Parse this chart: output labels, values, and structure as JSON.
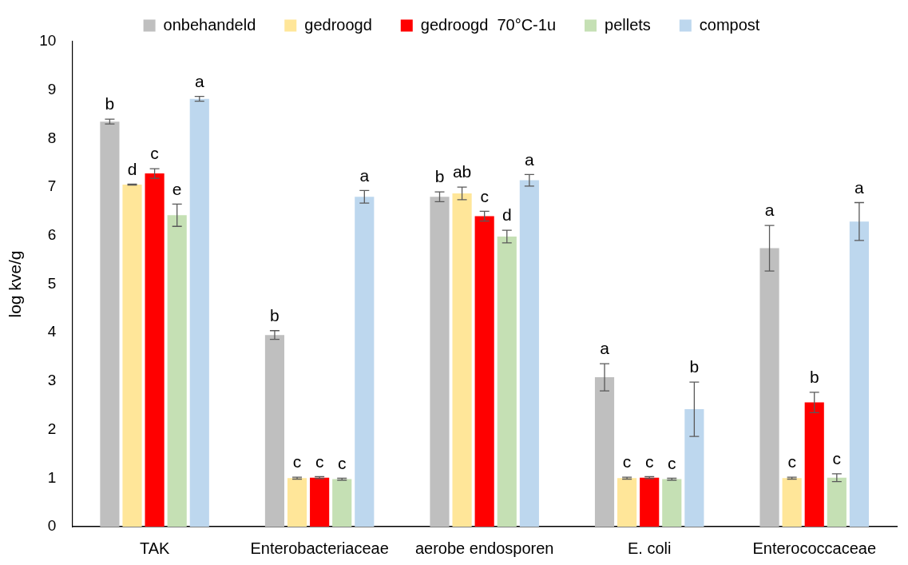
{
  "chart_data": {
    "type": "bar",
    "ylabel": "log kve/g",
    "categories": [
      "TAK",
      "Enterobacteriaceae",
      "aerobe endosporen",
      "E. coli",
      "Enterococcaceae"
    ],
    "series": [
      {
        "name": "onbehandeld",
        "color": "#bfbfbf",
        "values": [
          8.35,
          3.95,
          6.8,
          3.08,
          5.74
        ],
        "errors": [
          0.05,
          0.09,
          0.1,
          0.28,
          0.47
        ],
        "value_labels": [
          "b",
          "b",
          "b",
          "a",
          "a"
        ]
      },
      {
        "name": "gedroogd",
        "color": "#ffe699",
        "values": [
          7.05,
          1.0,
          6.87,
          1.0,
          1.0
        ],
        "errors": [
          0.01,
          0.02,
          0.13,
          0.02,
          0.02
        ],
        "value_labels": [
          "d",
          "c",
          "ab",
          "c",
          "c"
        ]
      },
      {
        "name": "gedroogd  70°C-1u",
        "color": "#ff0000",
        "values": [
          7.28,
          1.01,
          6.4,
          1.01,
          2.56
        ],
        "errors": [
          0.1,
          0.02,
          0.1,
          0.02,
          0.21
        ],
        "value_labels": [
          "c",
          "c",
          "c",
          "c",
          "b"
        ]
      },
      {
        "name": "pellets",
        "color": "#c5e0b4",
        "values": [
          6.42,
          0.98,
          5.98,
          0.98,
          1.01
        ],
        "errors": [
          0.23,
          0.02,
          0.13,
          0.02,
          0.08
        ],
        "value_labels": [
          "e",
          "c",
          "d",
          "c",
          "c"
        ]
      },
      {
        "name": "compost",
        "color": "#bdd7ee",
        "values": [
          8.82,
          6.8,
          7.14,
          2.42,
          6.29
        ],
        "errors": [
          0.05,
          0.13,
          0.12,
          0.56,
          0.39
        ],
        "value_labels": [
          "a",
          "a",
          "a",
          "b",
          "a"
        ]
      }
    ],
    "ylim": [
      0,
      10
    ],
    "yticks": [
      0,
      1,
      2,
      3,
      4,
      5,
      6,
      7,
      8,
      9,
      10
    ],
    "legend": "top"
  }
}
